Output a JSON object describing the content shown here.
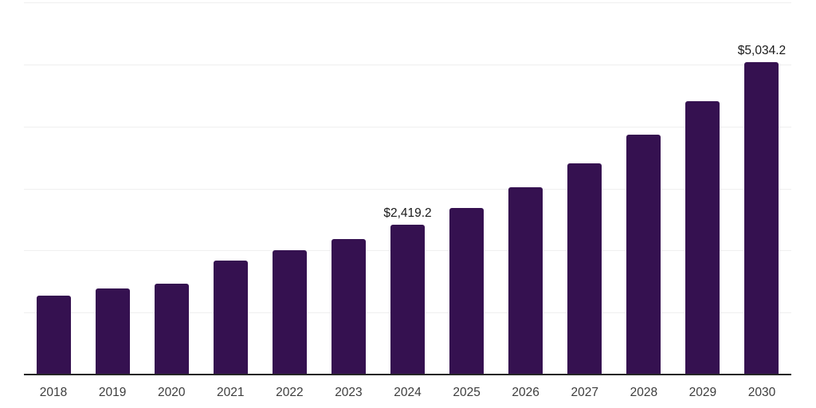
{
  "chart_data": {
    "type": "bar",
    "title": "",
    "xlabel": "",
    "ylabel": "",
    "categories": [
      "2018",
      "2019",
      "2020",
      "2021",
      "2022",
      "2023",
      "2024",
      "2025",
      "2026",
      "2027",
      "2028",
      "2029",
      "2030"
    ],
    "values": [
      1270,
      1385,
      1460,
      1835,
      2005,
      2190,
      2419.2,
      2690,
      3025,
      3410,
      3870,
      4405,
      5034.2
    ],
    "data_labels": [
      "",
      "",
      "",
      "",
      "",
      "",
      "$2,419.2",
      "",
      "",
      "",
      "",
      "",
      "$5,034.2"
    ],
    "ylim": [
      0,
      6000
    ],
    "gridline_step": 1000,
    "grid": true,
    "legend": "none",
    "y_tick_labels_visible": false,
    "colors": {
      "bar": "#351150",
      "axis_line": "#262626",
      "gridline": "#efefef",
      "data_label": "#1a1a1a",
      "tick_label": "#3d3d3d"
    }
  }
}
